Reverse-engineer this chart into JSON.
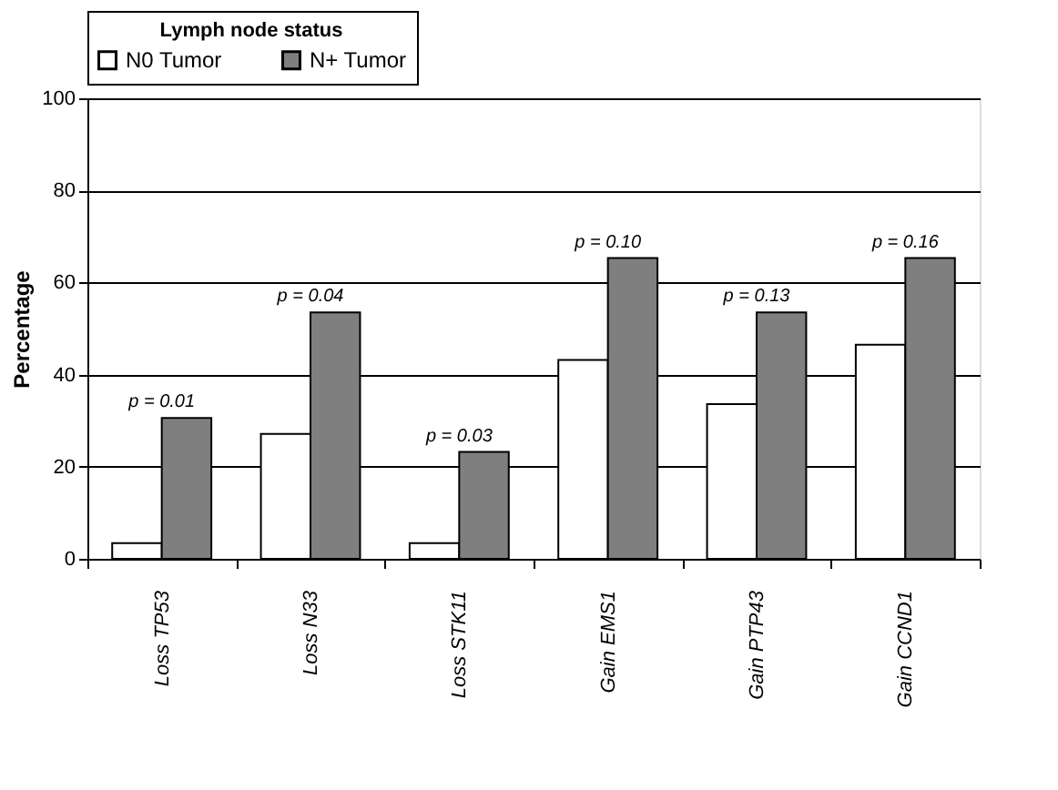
{
  "chart_data": {
    "type": "bar",
    "legend_title": "Lymph node status",
    "ylabel": "Percentage",
    "categories": [
      "Loss TP53",
      "Loss N33",
      "Loss STK11",
      "Gain EMS1",
      "Gain PTP43",
      "Gain CCND1"
    ],
    "series": [
      {
        "name": "N0 Tumor",
        "color": "#ffffff",
        "values": [
          3.4,
          27.1,
          3.4,
          43.2,
          33.6,
          46.5
        ]
      },
      {
        "name": "N+ Tumor",
        "color": "#7f7f7f",
        "values": [
          30.6,
          53.5,
          23.2,
          65.3,
          53.5,
          65.3
        ]
      }
    ],
    "ylim": [
      0,
      100
    ],
    "yticks": [
      0,
      20,
      40,
      60,
      80,
      100
    ],
    "grid": "y",
    "legend": "top",
    "annotations": [
      "p = 0.01",
      "p = 0.04",
      "p = 0.03",
      "p = 0.10",
      "p = 0.13",
      "p = 0.16"
    ]
  }
}
